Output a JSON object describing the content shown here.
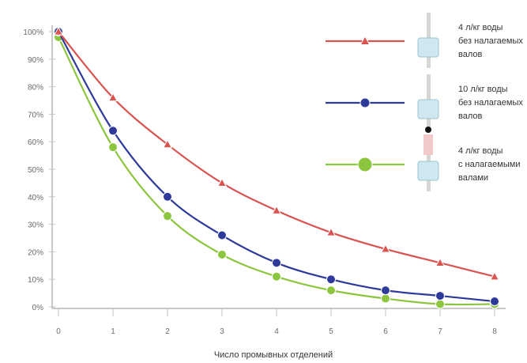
{
  "chart_data": {
    "type": "line",
    "title": "",
    "xlabel": "Число промывных отделений",
    "ylabel": "",
    "categories": [
      "0",
      "1",
      "2",
      "3",
      "4",
      "5",
      "6",
      "7",
      "8"
    ],
    "y_ticks": [
      "0%",
      "10%",
      "20%",
      "30%",
      "40%",
      "50%",
      "60%",
      "70%",
      "80%",
      "90%",
      "100%"
    ],
    "ylim": [
      0,
      100
    ],
    "grid": false,
    "legend_position": "right",
    "series": [
      {
        "name": "4 л/кг воды без налагаемых валов",
        "legend_lines": [
          "4 л/кг воды",
          "без налагаемых",
          "валов"
        ],
        "color": "#d9534f",
        "marker": "triangle",
        "values": [
          100,
          76,
          59,
          45,
          35,
          27,
          21,
          16,
          11
        ]
      },
      {
        "name": "10 л/кг воды без налагаемых валов",
        "legend_lines": [
          "10 л/кг воды",
          "без налагаемых",
          "валов"
        ],
        "color": "#2e3a9a",
        "marker": "circle",
        "values": [
          100,
          64,
          40,
          26,
          16,
          10,
          6,
          4,
          2
        ]
      },
      {
        "name": "4 л/кг воды с налагаемыми валами",
        "legend_lines": [
          "4 л/кг воды",
          "с налагаемыми",
          "валами"
        ],
        "color": "#8cc63f",
        "marker": "circle",
        "values": [
          98,
          58,
          33,
          19,
          11,
          6,
          3,
          1,
          1
        ]
      }
    ]
  }
}
